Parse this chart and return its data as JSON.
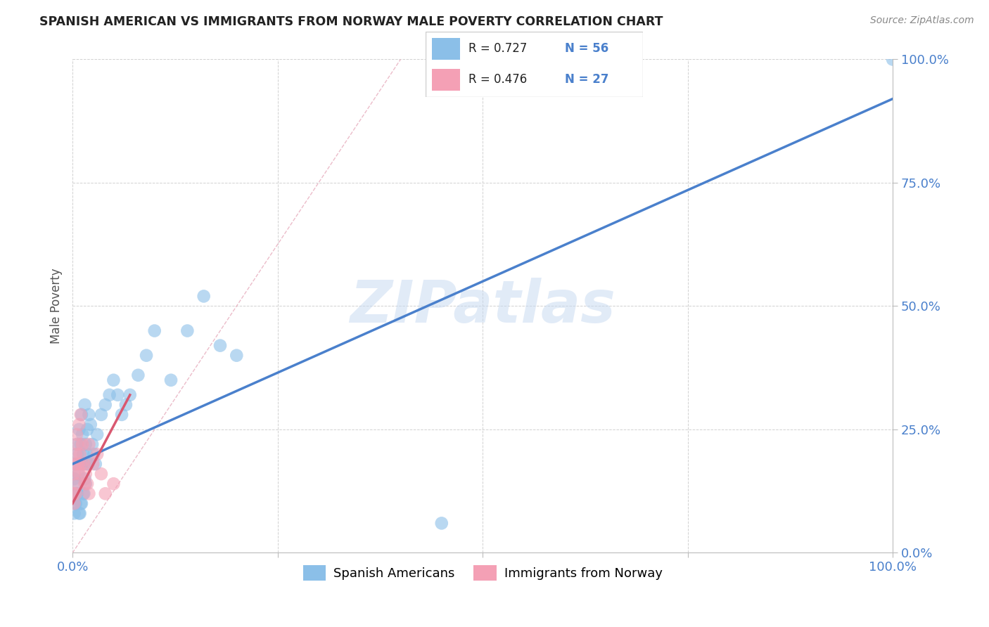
{
  "title": "SPANISH AMERICAN VS IMMIGRANTS FROM NORWAY MALE POVERTY CORRELATION CHART",
  "source": "Source: ZipAtlas.com",
  "ylabel": "Male Poverty",
  "watermark": "ZIPatlas",
  "xlim": [
    0,
    100
  ],
  "ylim": [
    0,
    100
  ],
  "xticks": [
    0,
    25,
    50,
    75,
    100
  ],
  "yticks": [
    0,
    25,
    50,
    75,
    100
  ],
  "xtick_labels": [
    "0.0%",
    "",
    "",
    "",
    "100.0%"
  ],
  "ytick_labels": [
    "0.0%",
    "25.0%",
    "50.0%",
    "75.0%",
    "100.0%"
  ],
  "blue_R": 0.727,
  "blue_N": 56,
  "pink_R": 0.476,
  "pink_N": 27,
  "blue_color": "#8bbfe8",
  "pink_color": "#f4a0b5",
  "blue_line_color": "#4a80cc",
  "pink_line_color": "#d95870",
  "legend_label_blue": "Spanish Americans",
  "legend_label_pink": "Immigrants from Norway",
  "blue_line_x": [
    0,
    100
  ],
  "blue_line_y": [
    18,
    92
  ],
  "pink_line_x": [
    0,
    7
  ],
  "pink_line_y": [
    10,
    32
  ],
  "dash_line_x": [
    0,
    40
  ],
  "dash_line_y": [
    0,
    100
  ],
  "blue_scatter_x": [
    0.2,
    0.3,
    0.4,
    0.5,
    0.6,
    0.7,
    0.8,
    0.9,
    1.0,
    1.1,
    1.2,
    1.3,
    1.4,
    1.5,
    1.6,
    1.7,
    1.8,
    1.9,
    2.0,
    2.2,
    2.4,
    2.6,
    2.8,
    3.0,
    3.5,
    4.0,
    4.5,
    5.0,
    5.5,
    6.0,
    6.5,
    7.0,
    8.0,
    9.0,
    10.0,
    12.0,
    14.0,
    16.0,
    18.0,
    20.0,
    0.3,
    0.5,
    0.8,
    1.0,
    1.3,
    1.5,
    0.2,
    0.4,
    0.6,
    0.9,
    1.1,
    1.4,
    1.6,
    1.8,
    45.0,
    100.0
  ],
  "blue_scatter_y": [
    15.0,
    18.0,
    14.0,
    22.0,
    20.0,
    16.0,
    25.0,
    18.0,
    22.0,
    28.0,
    24.0,
    20.0,
    18.0,
    30.0,
    22.0,
    20.0,
    25.0,
    18.0,
    28.0,
    26.0,
    22.0,
    20.0,
    18.0,
    24.0,
    28.0,
    30.0,
    32.0,
    35.0,
    32.0,
    28.0,
    30.0,
    32.0,
    36.0,
    40.0,
    45.0,
    35.0,
    45.0,
    52.0,
    42.0,
    40.0,
    10.0,
    12.0,
    8.0,
    10.0,
    12.0,
    15.0,
    8.0,
    10.0,
    12.0,
    8.0,
    10.0,
    12.0,
    14.0,
    18.0,
    6.0,
    100.0
  ],
  "pink_scatter_x": [
    0.1,
    0.2,
    0.3,
    0.4,
    0.5,
    0.6,
    0.7,
    0.8,
    0.9,
    1.0,
    1.2,
    1.4,
    1.6,
    1.8,
    2.0,
    2.5,
    3.0,
    3.5,
    4.0,
    5.0,
    0.2,
    0.4,
    0.6,
    0.8,
    1.0,
    1.5,
    2.0
  ],
  "pink_scatter_y": [
    12.0,
    16.0,
    18.0,
    20.0,
    24.0,
    22.0,
    18.0,
    26.0,
    20.0,
    28.0,
    22.0,
    18.0,
    16.0,
    14.0,
    22.0,
    18.0,
    20.0,
    16.0,
    12.0,
    14.0,
    10.0,
    12.0,
    14.0,
    16.0,
    18.0,
    14.0,
    12.0
  ]
}
